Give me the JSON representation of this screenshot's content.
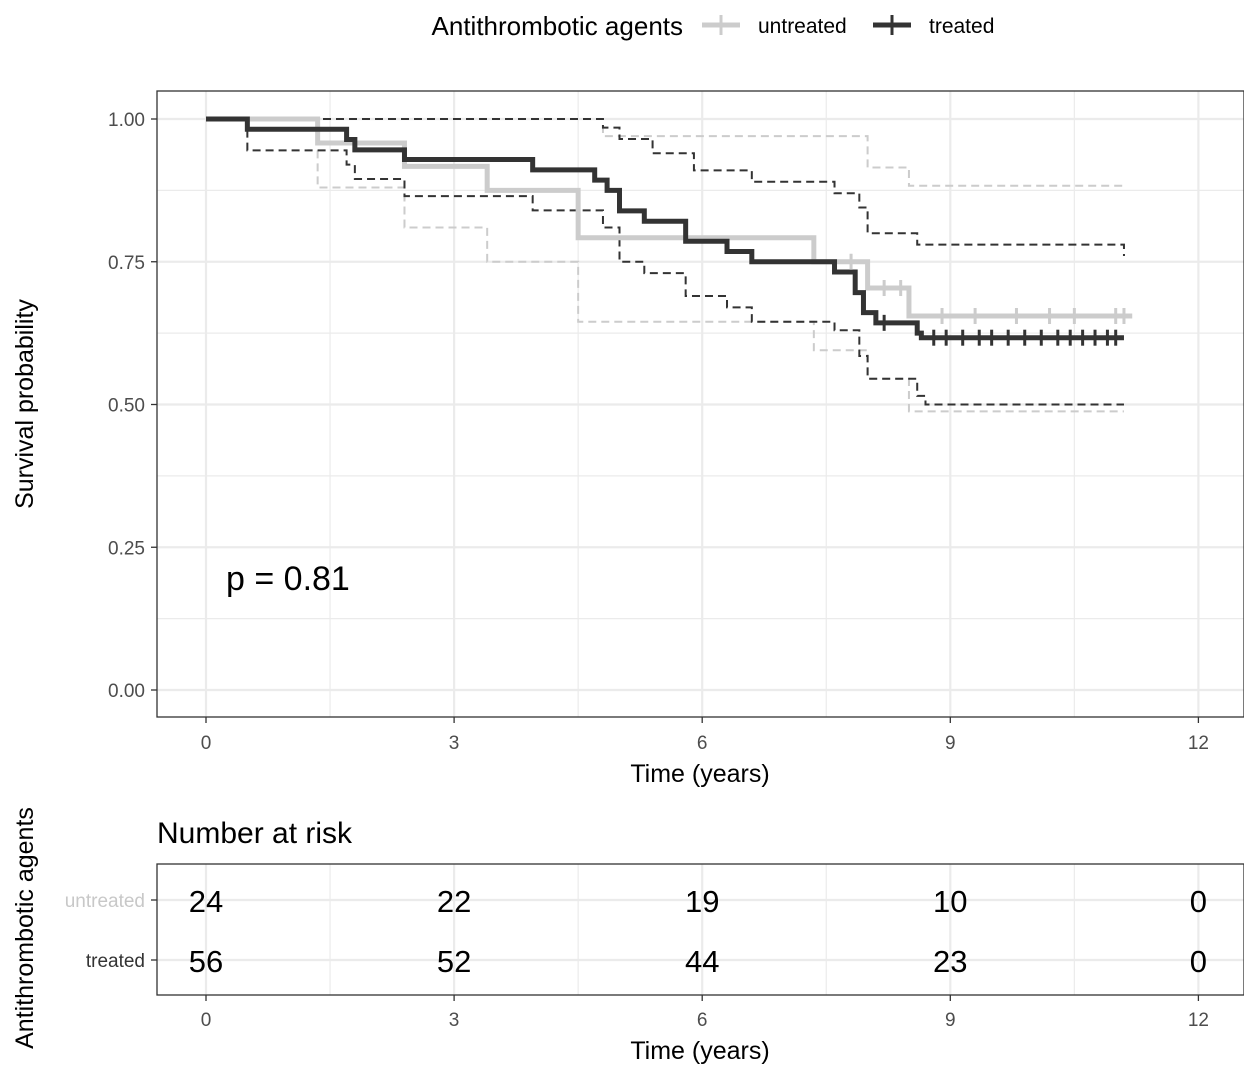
{
  "chart_data": {
    "type": "line",
    "subtype": "kaplan-meier",
    "xlabel": "Time (years)",
    "ylabel": "Survival probability",
    "xlim": [
      0,
      12
    ],
    "ylim": [
      0,
      1
    ],
    "x_ticks": [
      0,
      3,
      6,
      9,
      12
    ],
    "y_ticks": [
      "0.00",
      "0.25",
      "0.50",
      "0.75",
      "1.00"
    ],
    "grid": true,
    "legend": {
      "title": "Antithrombotic agents",
      "placement": "top",
      "entries": [
        "untreated",
        "treated"
      ]
    },
    "annotation": "p = 0.81",
    "series": [
      {
        "name": "untreated",
        "color": "#cccccc",
        "steps": [
          [
            0,
            1.0
          ],
          [
            1.35,
            0.958
          ],
          [
            2.4,
            0.917
          ],
          [
            3.4,
            0.875
          ],
          [
            4.5,
            0.792
          ],
          [
            7.35,
            0.75
          ],
          [
            8.0,
            0.704
          ],
          [
            8.5,
            0.655
          ],
          [
            11.2,
            0.655
          ]
        ],
        "ci_upper": [
          [
            0,
            1.0
          ],
          [
            4.0,
            1.0
          ],
          [
            4.8,
            0.97
          ],
          [
            7.35,
            0.97
          ],
          [
            8.0,
            0.915
          ],
          [
            8.5,
            0.883
          ],
          [
            11.1,
            0.883
          ]
        ],
        "ci_lower": [
          [
            0,
            1.0
          ],
          [
            1.35,
            0.88
          ],
          [
            2.4,
            0.81
          ],
          [
            3.4,
            0.75
          ],
          [
            4.5,
            0.645
          ],
          [
            7.35,
            0.595
          ],
          [
            8.0,
            0.545
          ],
          [
            8.5,
            0.488
          ],
          [
            11.1,
            0.488
          ]
        ],
        "censor_times": [
          7.8,
          8.2,
          8.4,
          8.9,
          9.3,
          9.8,
          10.2,
          10.5,
          11.0,
          11.1
        ]
      },
      {
        "name": "treated",
        "color": "#333333",
        "steps": [
          [
            0,
            1.0
          ],
          [
            0.5,
            0.982
          ],
          [
            1.7,
            0.964
          ],
          [
            1.8,
            0.946
          ],
          [
            2.4,
            0.929
          ],
          [
            3.95,
            0.911
          ],
          [
            4.7,
            0.893
          ],
          [
            4.85,
            0.875
          ],
          [
            5.0,
            0.839
          ],
          [
            5.3,
            0.821
          ],
          [
            5.8,
            0.786
          ],
          [
            6.3,
            0.768
          ],
          [
            6.6,
            0.75
          ],
          [
            7.6,
            0.732
          ],
          [
            7.85,
            0.696
          ],
          [
            7.95,
            0.661
          ],
          [
            8.1,
            0.643
          ],
          [
            8.6,
            0.625
          ],
          [
            8.65,
            0.617
          ],
          [
            11.1,
            0.617
          ]
        ],
        "ci_upper": [
          [
            0,
            1.0
          ],
          [
            3.9,
            1.0
          ],
          [
            4.8,
            0.985
          ],
          [
            5.0,
            0.965
          ],
          [
            5.4,
            0.94
          ],
          [
            5.9,
            0.91
          ],
          [
            6.6,
            0.89
          ],
          [
            7.6,
            0.87
          ],
          [
            7.9,
            0.845
          ],
          [
            8.0,
            0.8
          ],
          [
            8.6,
            0.78
          ],
          [
            11.1,
            0.76
          ]
        ],
        "ci_lower": [
          [
            0,
            1.0
          ],
          [
            0.5,
            0.945
          ],
          [
            1.7,
            0.92
          ],
          [
            1.8,
            0.895
          ],
          [
            2.4,
            0.865
          ],
          [
            3.95,
            0.84
          ],
          [
            4.8,
            0.81
          ],
          [
            5.0,
            0.75
          ],
          [
            5.3,
            0.73
          ],
          [
            5.8,
            0.69
          ],
          [
            6.3,
            0.67
          ],
          [
            6.6,
            0.645
          ],
          [
            7.6,
            0.63
          ],
          [
            7.9,
            0.585
          ],
          [
            8.0,
            0.545
          ],
          [
            8.6,
            0.515
          ],
          [
            8.7,
            0.5
          ],
          [
            11.1,
            0.5
          ]
        ],
        "censor_times": [
          8.2,
          8.8,
          8.95,
          9.15,
          9.35,
          9.5,
          9.7,
          9.9,
          10.1,
          10.3,
          10.45,
          10.6,
          10.75,
          10.9,
          11.0
        ]
      }
    ],
    "risk_table": {
      "title": "Number at risk",
      "ylabel": "Antithrombotic agents",
      "xlabel": "Time (years)",
      "times": [
        0,
        3,
        6,
        9,
        12
      ],
      "rows": [
        {
          "name": "untreated",
          "label_color": "#c8c8c8",
          "values": [
            "24",
            "22",
            "19",
            "10",
            "0"
          ]
        },
        {
          "name": "treated",
          "label_color": "#333333",
          "values": [
            "56",
            "52",
            "44",
            "23",
            "0"
          ]
        }
      ]
    }
  }
}
